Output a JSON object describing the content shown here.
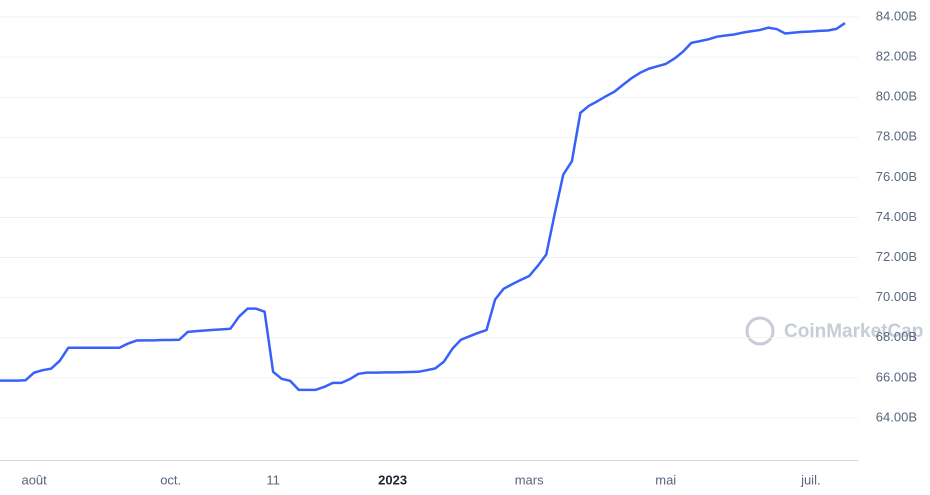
{
  "chart_data": {
    "type": "line",
    "color": "#3861fb",
    "watermark": "CoinMarketCap",
    "categories": [
      null,
      null,
      null,
      null,
      "août",
      null,
      null,
      null,
      null,
      null,
      null,
      null,
      null,
      null,
      null,
      null,
      null,
      null,
      null,
      null,
      "oct.",
      null,
      null,
      null,
      null,
      null,
      null,
      null,
      null,
      null,
      null,
      null,
      "11",
      null,
      null,
      null,
      null,
      null,
      null,
      null,
      null,
      null,
      null,
      null,
      null,
      null,
      "2023",
      null,
      null,
      null,
      null,
      null,
      null,
      null,
      null,
      null,
      null,
      null,
      null,
      null,
      null,
      null,
      "mars",
      null,
      null,
      null,
      null,
      null,
      null,
      null,
      null,
      null,
      null,
      null,
      null,
      null,
      null,
      null,
      "mai",
      null,
      null,
      null,
      null,
      null,
      null,
      null,
      null,
      null,
      null,
      null,
      null,
      null,
      null,
      null,
      null,
      "juil.",
      null,
      null,
      null,
      null
    ],
    "values": [
      65.86,
      65.86,
      65.86,
      65.88,
      66.26,
      66.38,
      66.46,
      66.85,
      67.5,
      67.5,
      67.5,
      67.5,
      67.5,
      67.5,
      67.5,
      67.71,
      67.86,
      67.87,
      67.87,
      67.89,
      67.89,
      67.9,
      68.29,
      68.33,
      68.36,
      68.39,
      68.42,
      68.45,
      69.05,
      69.45,
      69.45,
      69.3,
      66.3,
      65.95,
      65.85,
      65.4,
      65.4,
      65.4,
      65.55,
      65.75,
      65.75,
      65.94,
      66.2,
      66.26,
      66.26,
      66.27,
      66.27,
      66.28,
      66.29,
      66.3,
      66.38,
      66.47,
      66.8,
      67.45,
      67.9,
      68.07,
      68.24,
      68.38,
      69.9,
      70.44,
      70.67,
      70.88,
      71.08,
      71.58,
      72.15,
      74.2,
      76.15,
      76.8,
      79.22,
      79.57,
      79.8,
      80.05,
      80.28,
      80.62,
      80.95,
      81.22,
      81.42,
      81.54,
      81.66,
      81.92,
      82.26,
      82.71,
      82.8,
      82.89,
      83.02,
      83.08,
      83.13,
      83.22,
      83.29,
      83.35,
      83.47,
      83.4,
      83.18,
      83.22,
      83.26,
      83.28,
      83.31,
      83.33,
      83.41,
      83.7
    ],
    "ylim": [
      61.9,
      84.85
    ],
    "yticks": [
      {
        "value": 64,
        "label": "64.00B"
      },
      {
        "value": 66,
        "label": "66.00B"
      },
      {
        "value": 68,
        "label": "68.00B"
      },
      {
        "value": 70,
        "label": "70.00B"
      },
      {
        "value": 72,
        "label": "72.00B"
      },
      {
        "value": 74,
        "label": "74.00B"
      },
      {
        "value": 76,
        "label": "76.00B"
      },
      {
        "value": 78,
        "label": "78.00B"
      },
      {
        "value": 80,
        "label": "80.00B"
      },
      {
        "value": 82,
        "label": "82.00B"
      },
      {
        "value": 84,
        "label": "84.00B"
      }
    ],
    "grid": true
  }
}
